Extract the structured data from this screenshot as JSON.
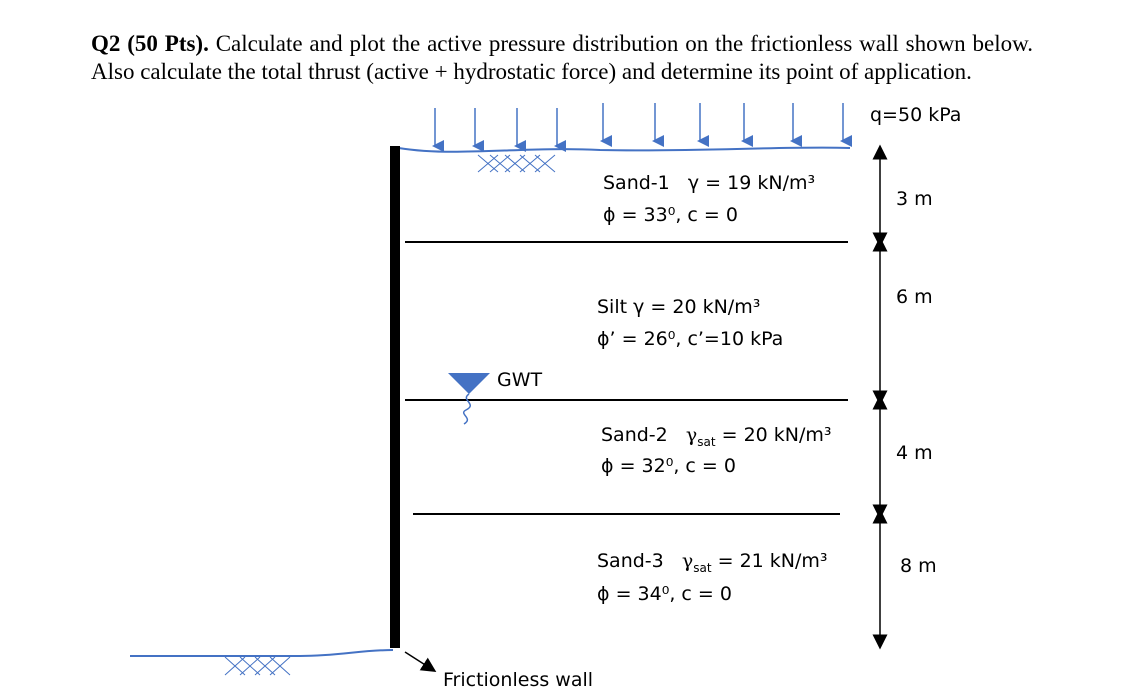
{
  "question": {
    "label": "Q2 (50 Pts).",
    "text": "Calculate and plot the active pressure distribution on the frictionless wall shown below. Also calculate the total thrust (active + hydrostatic force) and determine its point of application."
  },
  "surcharge": "q=50 kPa",
  "gwt": "GWT",
  "wall_label": "Frictionless wall",
  "layers": [
    {
      "name": "Sand-1",
      "gamma": "γ = 19 kN/m³",
      "phi": "ϕ = 33⁰, c = 0",
      "thickness": "3 m"
    },
    {
      "name": "Silt",
      "gamma": "γ = 20 kN/m³",
      "phi": "ϕ’ = 26⁰, c’=10 kPa",
      "thickness": "6 m"
    },
    {
      "name": "Sand-2",
      "gamma_symbol": "γ",
      "gamma_sub": "sat",
      "gamma_value": "= 20 kN/m³",
      "phi": "ϕ = 32⁰, c = 0",
      "thickness": "4 m"
    },
    {
      "name": "Sand-3",
      "gamma_symbol": "γ",
      "gamma_sub": "sat",
      "gamma_value": "= 21 kN/m³",
      "phi": "ϕ = 34⁰, c = 0",
      "thickness": "8 m"
    }
  ]
}
